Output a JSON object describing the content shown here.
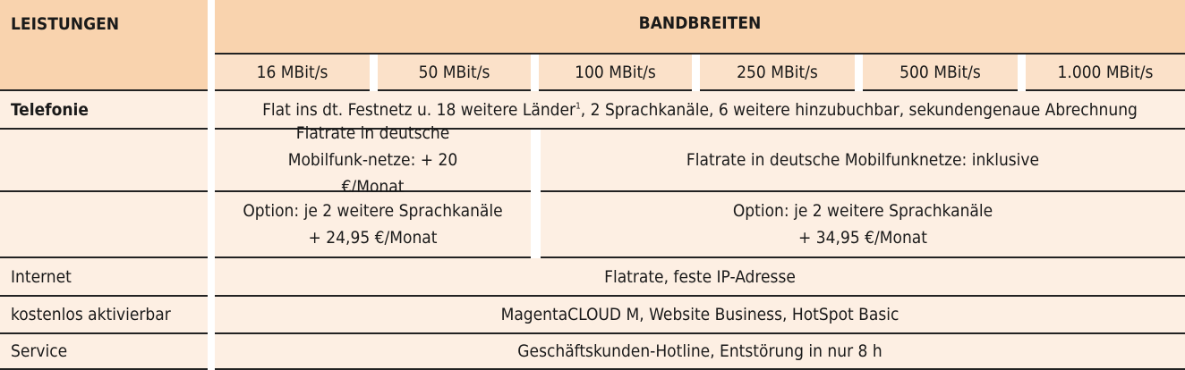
{
  "header": {
    "left": "LEISTUNGEN",
    "right": "BANDBREITEN"
  },
  "bandwidths": [
    "16 MBit/s",
    "50 MBit/s",
    "100 MBit/s",
    "250 MBit/s",
    "500 MBit/s",
    "1.000 MBit/s"
  ],
  "rows": {
    "telefonie": {
      "label": "Telefonie",
      "text": "Flat ins dt. Festnetz u. 18 weitere Länder",
      "footnote": "1",
      "text_after": ", 2 Sprachkanäle, 6 weitere hinzubuchbar, sekundengenaue Abrechnung"
    },
    "mobil": {
      "label": "",
      "low": "Flatrate in deutsche Mobilfunk-netze: + 20 €/Monat",
      "high": "Flatrate in deutsche Mobilfunknetze: inklusive"
    },
    "option": {
      "label": "",
      "low_line1": "Option: je 2 weitere Sprachkanäle",
      "low_line2": "+ 24,95 €/Monat",
      "high_line1": "Option: je 2 weitere Sprachkanäle",
      "high_line2": "+ 34,95 €/Monat"
    },
    "internet": {
      "label": "Internet",
      "text": "Flatrate, feste IP-Adresse"
    },
    "kostenlos": {
      "label": "kostenlos aktivierbar",
      "text": "MagentaCLOUD M, Website Business, HotSpot Basic"
    },
    "service": {
      "label": "Service",
      "text": "Geschäftskunden-Hotline, Entstörung in nur 8 h"
    }
  },
  "colors": {
    "header": "#f9d3ae",
    "subheader": "#fbe1c9",
    "row": "#fdefe3",
    "line": "#222222"
  }
}
